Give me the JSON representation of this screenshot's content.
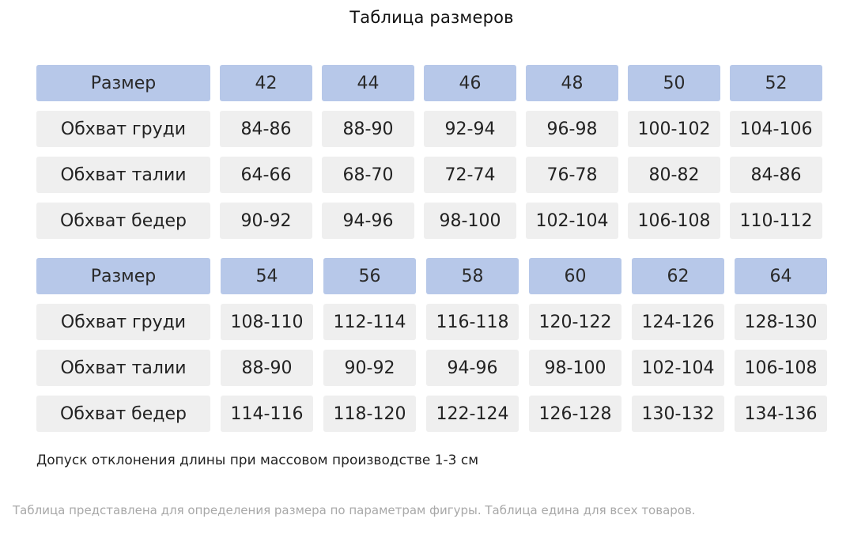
{
  "title": "Таблица размеров",
  "tables": [
    {
      "header": {
        "label": "Размер",
        "sizes": [
          "42",
          "44",
          "46",
          "48",
          "50",
          "52"
        ]
      },
      "rows": [
        {
          "label": "Обхват груди",
          "values": [
            "84-86",
            "88-90",
            "92-94",
            "96-98",
            "100-102",
            "104-106"
          ]
        },
        {
          "label": "Обхват талии",
          "values": [
            "64-66",
            "68-70",
            "72-74",
            "76-78",
            "80-82",
            "84-86"
          ]
        },
        {
          "label": "Обхват бедер",
          "values": [
            "90-92",
            "94-96",
            "98-100",
            "102-104",
            "106-108",
            "110-112"
          ]
        }
      ]
    },
    {
      "header": {
        "label": "Размер",
        "sizes": [
          "54",
          "56",
          "58",
          "60",
          "62",
          "64"
        ]
      },
      "rows": [
        {
          "label": "Обхват груди",
          "values": [
            "108-110",
            "112-114",
            "116-118",
            "120-122",
            "124-126",
            "128-130"
          ]
        },
        {
          "label": "Обхват талии",
          "values": [
            "88-90",
            "90-92",
            "94-96",
            "98-100",
            "102-104",
            "106-108"
          ]
        },
        {
          "label": "Обхват бедер",
          "values": [
            "114-116",
            "118-120",
            "122-124",
            "126-128",
            "130-132",
            "134-136"
          ]
        }
      ]
    }
  ],
  "tolerance_note": "Допуск отклонения длины при массовом производстве 1-3 см",
  "footer_note": "Таблица представлена для определения размера по параметрам фигуры. Таблица едина для всех товаров.",
  "colors": {
    "header_cell": "#b7c8e9",
    "body_cell": "#efefef",
    "footer_text": "#a8a8a8"
  }
}
